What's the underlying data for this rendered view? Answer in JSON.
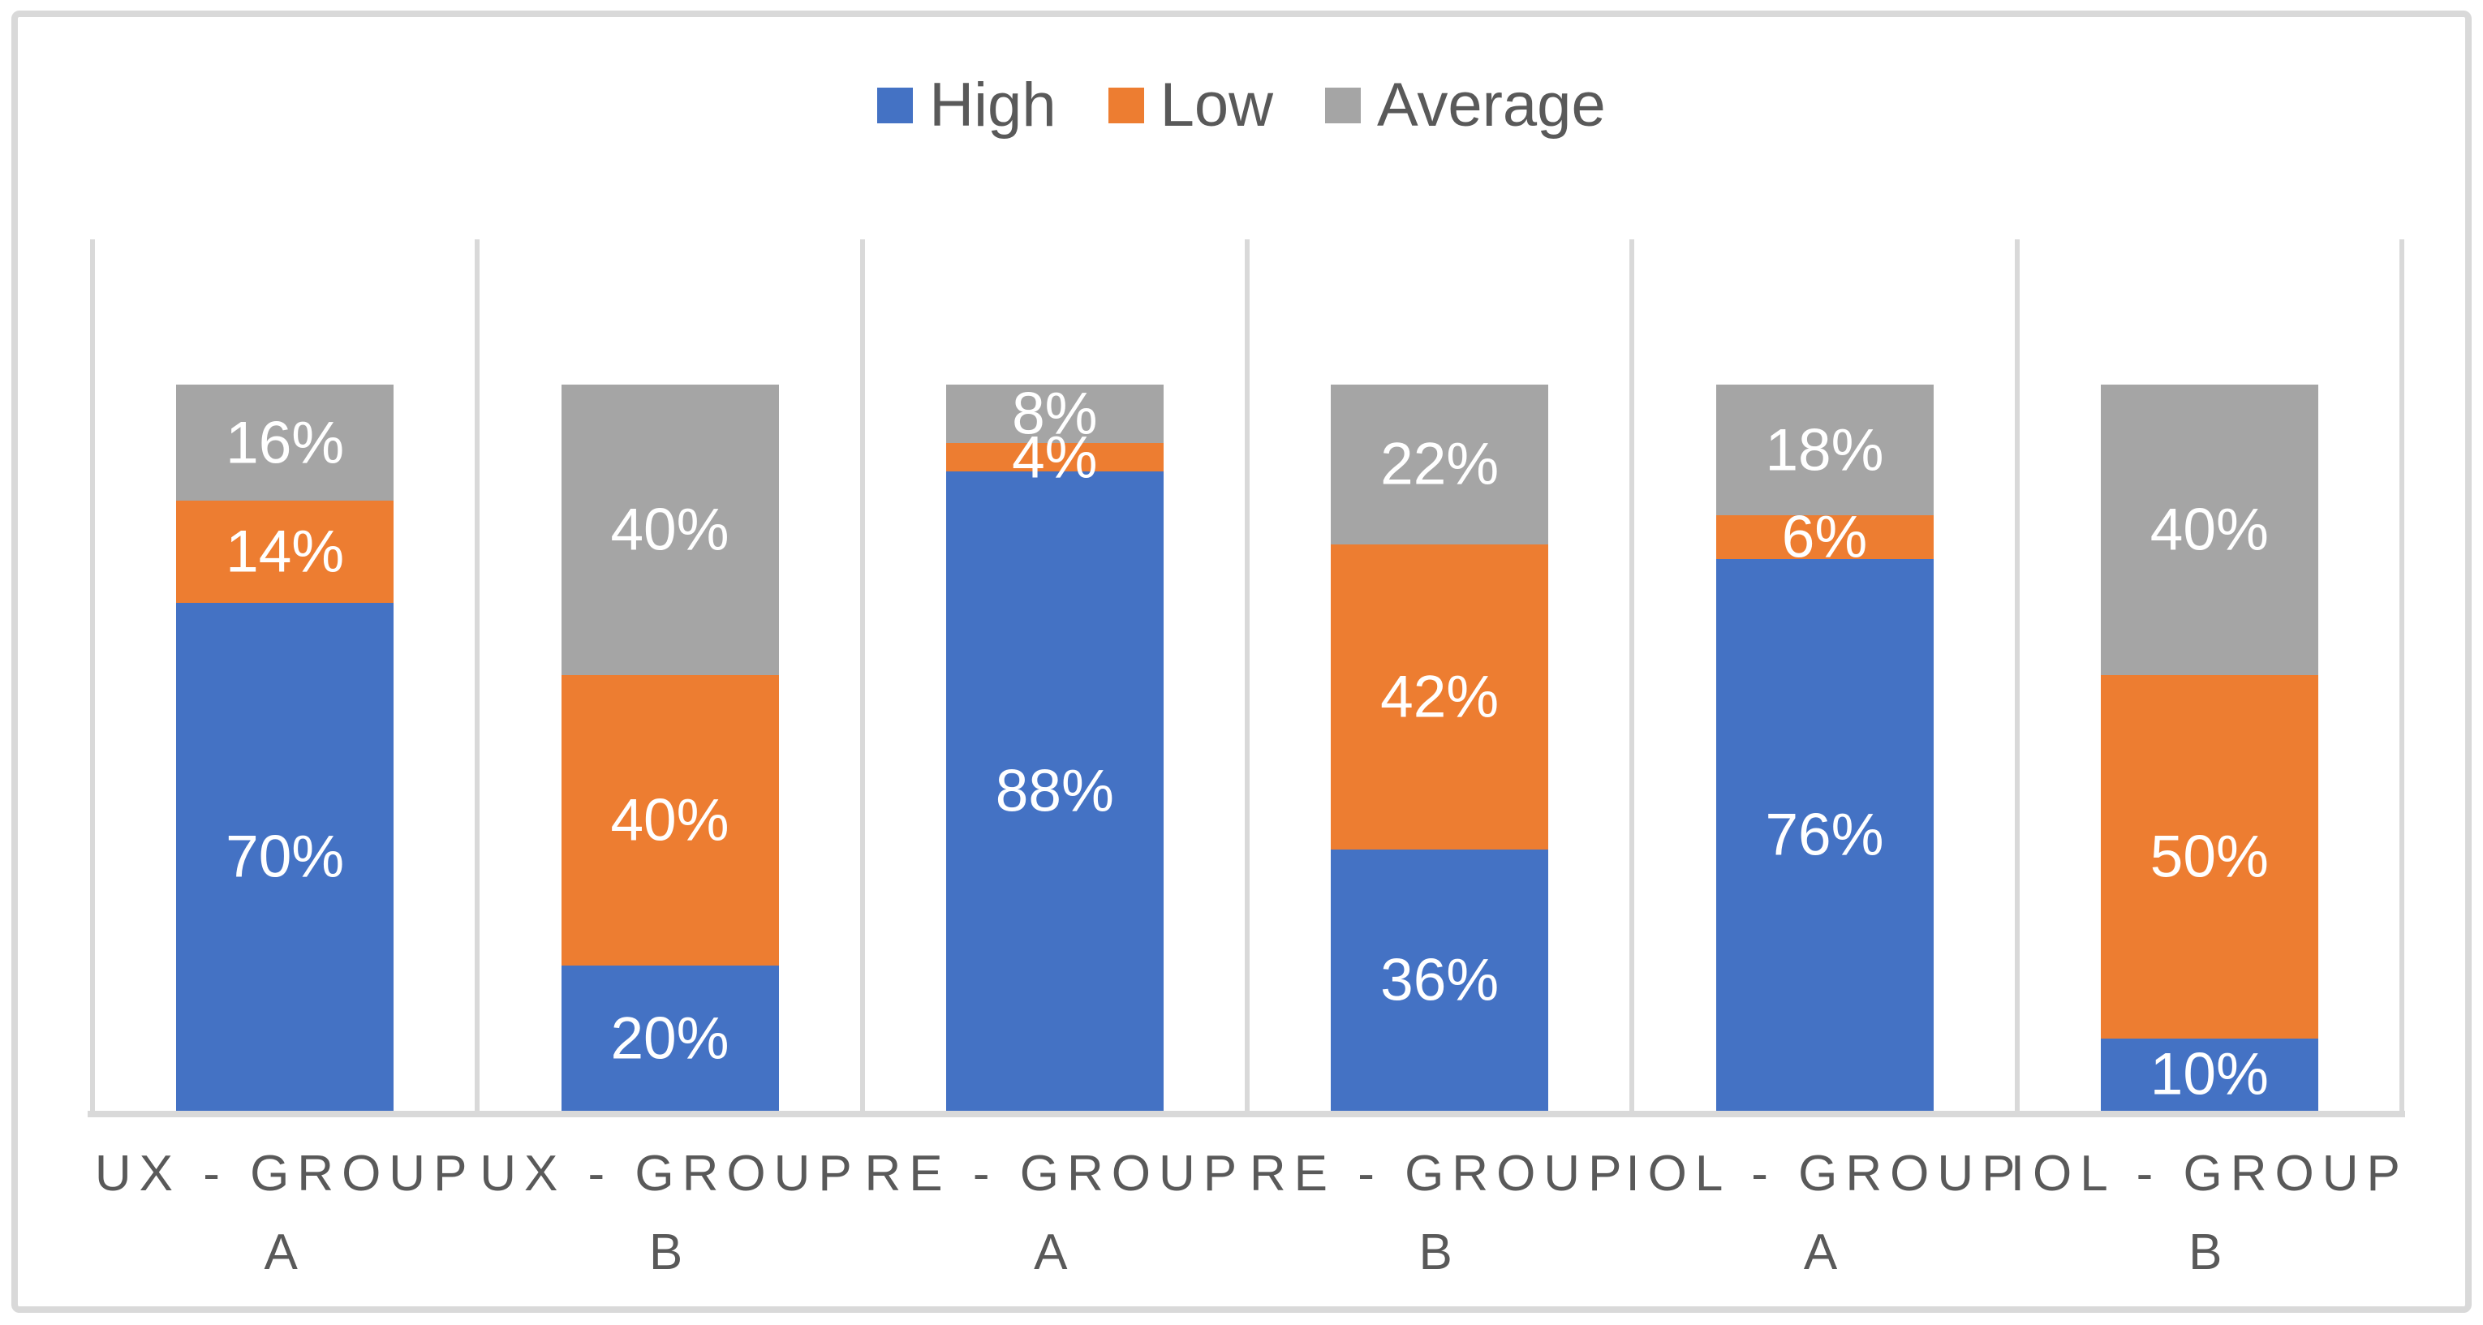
{
  "figure": {
    "background_color": "#FFFFFF",
    "frame_border_color": "#D9D9D9"
  },
  "legend": {
    "position": "top-center",
    "items": [
      {
        "label": "High",
        "color": "#4472C4"
      },
      {
        "label": "Low",
        "color": "#ED7D31"
      },
      {
        "label": "Average",
        "color": "#A5A5A5"
      }
    ]
  },
  "chart_data": {
    "type": "bar",
    "variant": "100-percent-stacked-column",
    "title": "",
    "xlabel": "",
    "ylabel": "",
    "ylim": [
      0,
      120
    ],
    "value_axis_visible": false,
    "grid": "vertical-category-separators-only",
    "gridline_color": "#D9D9D9",
    "axis_line_color": "#D9D9D9",
    "legend_position": "top-center",
    "data_label_color": "#FFFFFF",
    "category_label_color": "#595959",
    "categories": [
      "UX - GROUP A",
      "UX - GROUP B",
      "RE - GROUP A",
      "RE - GROUP B",
      "IOL - GROUP A",
      "IOL - GROUP B"
    ],
    "category_label_lines": [
      [
        "UX - GROUP",
        "A"
      ],
      [
        "UX - GROUP",
        "B"
      ],
      [
        "RE - GROUP",
        "A"
      ],
      [
        "RE - GROUP",
        "B"
      ],
      [
        "IOL - GROUP",
        "A"
      ],
      [
        "IOL - GROUP",
        "B"
      ]
    ],
    "series": [
      {
        "name": "High",
        "color": "#4472C4",
        "values": [
          70,
          20,
          88,
          36,
          76,
          10
        ],
        "labels": [
          "70%",
          "20%",
          "88%",
          "36%",
          "76%",
          "10%"
        ]
      },
      {
        "name": "Low",
        "color": "#ED7D31",
        "values": [
          14,
          40,
          4,
          42,
          6,
          50
        ],
        "labels": [
          "14%",
          "40%",
          "4%",
          "42%",
          "6%",
          "50%"
        ]
      },
      {
        "name": "Average",
        "color": "#A5A5A5",
        "values": [
          16,
          40,
          8,
          22,
          18,
          40
        ],
        "labels": [
          "16%",
          "40%",
          "8%",
          "22%",
          "18%",
          "40%"
        ]
      }
    ]
  }
}
